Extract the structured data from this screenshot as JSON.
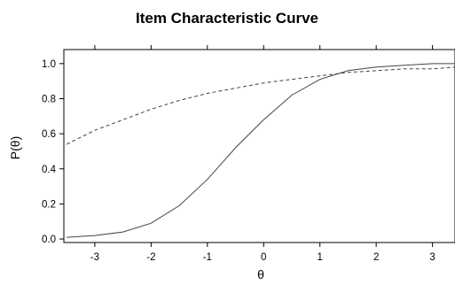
{
  "chart_data": {
    "type": "line",
    "title": "Item Characteristic Curve",
    "xlabel": "θ",
    "ylabel": "P(θ)",
    "xlim": [
      -3.55,
      3.4
    ],
    "ylim": [
      -0.02,
      1.08
    ],
    "x_ticks": [
      "-3",
      "-2",
      "-1",
      "0",
      "1",
      "2",
      "3"
    ],
    "y_ticks": [
      "0.0",
      "0.2",
      "0.4",
      "0.6",
      "0.8",
      "1.0"
    ],
    "grid": false,
    "series": [
      {
        "style": "solid",
        "color": "#444444",
        "x": [
          -3.5,
          -3.0,
          -2.5,
          -2.0,
          -1.5,
          -1.0,
          -0.5,
          0.0,
          0.5,
          1.0,
          1.5,
          2.0,
          2.5,
          3.0,
          3.4
        ],
        "y": [
          0.01,
          0.02,
          0.04,
          0.09,
          0.19,
          0.34,
          0.52,
          0.68,
          0.82,
          0.91,
          0.96,
          0.98,
          0.99,
          1.0,
          1.0
        ]
      },
      {
        "style": "dashed",
        "color": "#444444",
        "x": [
          -3.5,
          -3.0,
          -2.5,
          -2.0,
          -1.5,
          -1.0,
          -0.5,
          0.0,
          0.5,
          1.0,
          1.5,
          2.0,
          2.5,
          3.0,
          3.4
        ],
        "y": [
          0.54,
          0.62,
          0.68,
          0.74,
          0.79,
          0.83,
          0.86,
          0.89,
          0.91,
          0.93,
          0.95,
          0.96,
          0.97,
          0.97,
          0.98
        ]
      }
    ]
  }
}
